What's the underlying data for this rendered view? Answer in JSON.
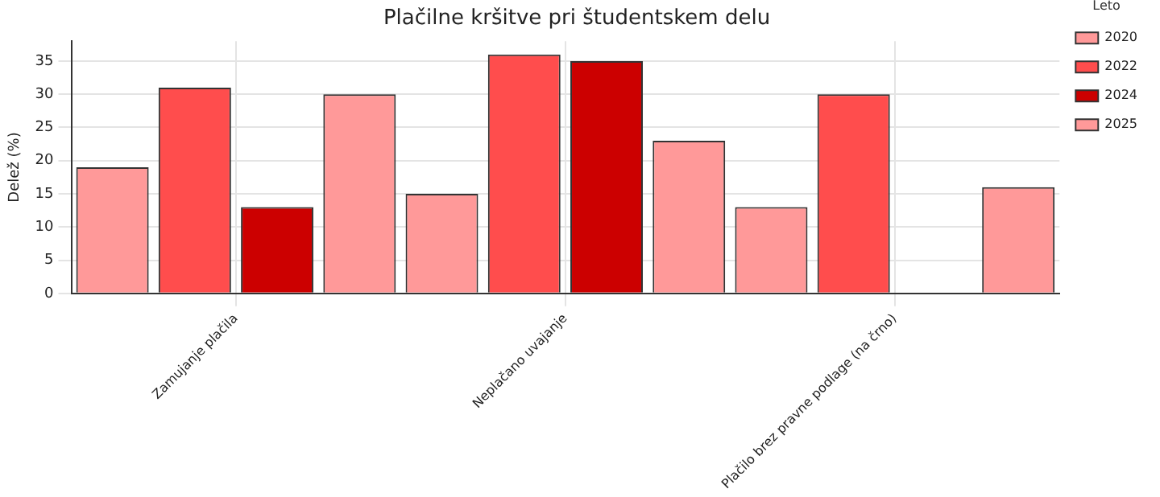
{
  "chart_data": {
    "type": "bar",
    "title": "Plačilne kršitve pri študentskem delu",
    "ylabel": "Delež (%)",
    "legend_title": "Leto",
    "categories": [
      "Zamujanje plačila",
      "Neplačano uvajanje",
      "Plačilo brez pravne podlage (na črno)"
    ],
    "series": [
      {
        "name": "2020",
        "color": "#ff9999",
        "values": [
          19,
          15,
          13
        ]
      },
      {
        "name": "2022",
        "color": "#ff4d4d",
        "values": [
          31,
          36,
          30
        ]
      },
      {
        "name": "2024",
        "color": "#cc0000",
        "values": [
          13,
          35,
          null
        ]
      },
      {
        "name": "2025",
        "color": "#ff9999",
        "values": [
          30,
          23,
          16
        ]
      }
    ],
    "ylim": [
      0,
      38
    ],
    "yticks": [
      0,
      5,
      10,
      15,
      20,
      25,
      30,
      35
    ],
    "grid": true,
    "legend": "top right"
  }
}
